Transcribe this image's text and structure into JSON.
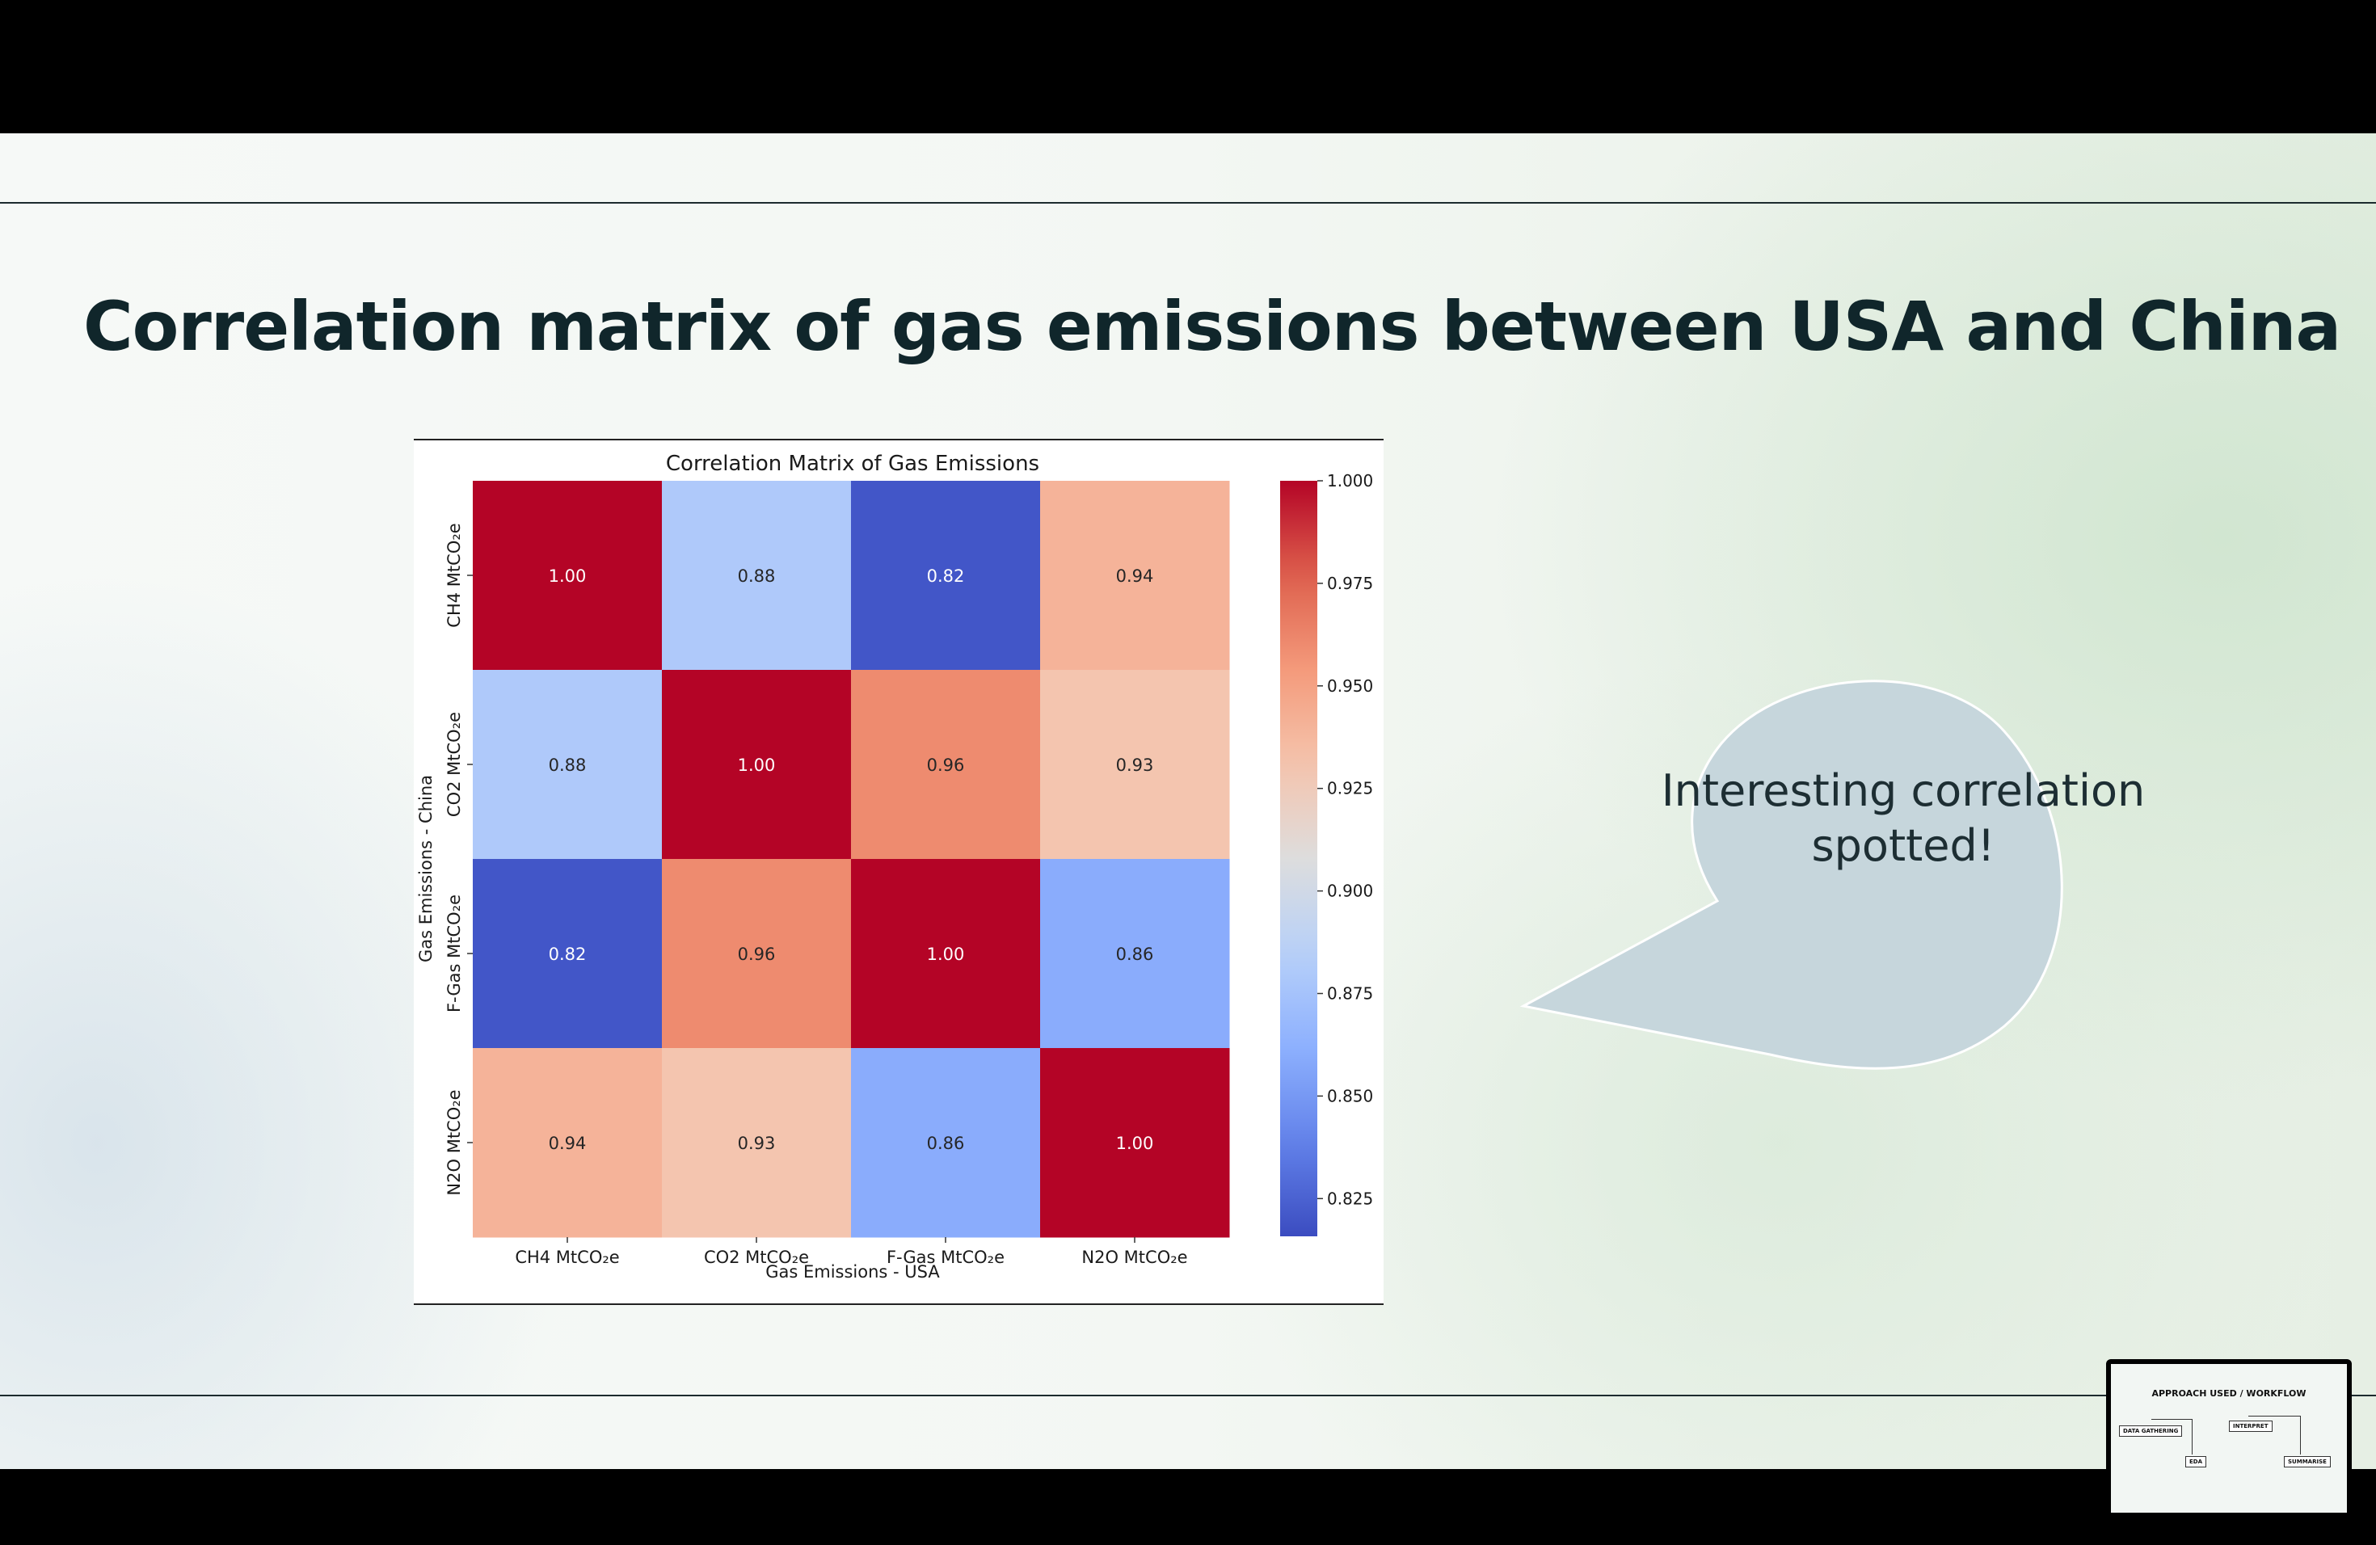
{
  "slide": {
    "title": "Correlation matrix of gas emissions between USA and China",
    "callout_text_line1": "Interesting correlation",
    "callout_text_line2": "spotted!"
  },
  "thumbnail": {
    "title": "APPROACH USED / WORKFLOW",
    "steps": [
      "DATA GATHERING",
      "EDA",
      "INTERPRET",
      "SUMMARISE"
    ]
  },
  "chart_data": {
    "type": "heatmap",
    "title": "Correlation Matrix of Gas Emissions",
    "xlabel": "Gas Emissions - USA",
    "ylabel": "Gas Emissions - China",
    "x_categories": [
      "CH4 MtCO₂e",
      "CO2 MtCO₂e",
      "F-Gas MtCO₂e",
      "N2O MtCO₂e"
    ],
    "y_categories": [
      "CH4 MtCO₂e",
      "CO2 MtCO₂e",
      "F-Gas MtCO₂e",
      "N2O MtCO₂e"
    ],
    "values": [
      [
        1.0,
        0.88,
        0.82,
        0.94
      ],
      [
        0.88,
        1.0,
        0.96,
        0.93
      ],
      [
        0.82,
        0.96,
        1.0,
        0.86
      ],
      [
        0.94,
        0.93,
        0.86,
        1.0
      ]
    ],
    "colormap": "coolwarm",
    "colorbar": {
      "range": [
        0.8158,
        1.0
      ],
      "ticks": [
        0.825,
        0.85,
        0.875,
        0.9,
        0.925,
        0.95,
        0.975,
        1.0
      ],
      "tick_labels": [
        "0.825",
        "0.850",
        "0.875",
        "0.900",
        "0.925",
        "0.950",
        "0.975",
        "1.000"
      ]
    },
    "annotation_format": "0.00",
    "legend": "colorbar-right"
  }
}
